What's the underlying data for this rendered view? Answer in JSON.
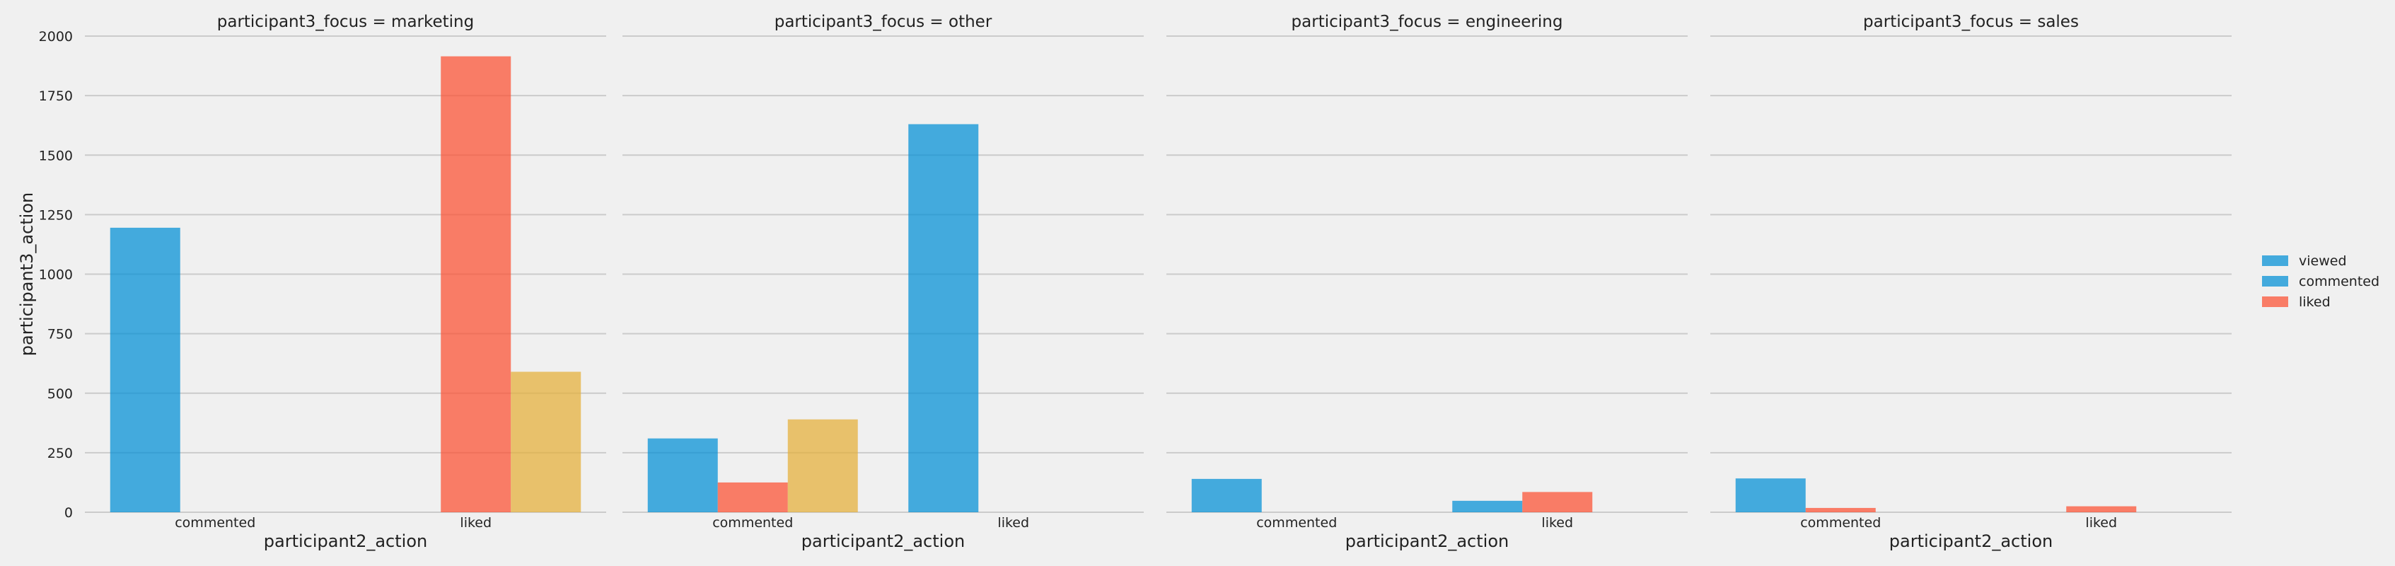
{
  "chart_data": {
    "type": "bar",
    "ylabel": "participant3_action",
    "xlabel": "participant2_action",
    "ylim": [
      0,
      2000
    ],
    "yticks": [
      0,
      250,
      500,
      750,
      1000,
      1250,
      1500,
      1750,
      2000
    ],
    "categories": [
      "commented",
      "liked"
    ],
    "grid": true,
    "legend_placement": "right",
    "legend": [
      {
        "label": "viewed",
        "color": "#008fd5"
      },
      {
        "label": "commented",
        "color": "#008fd5"
      },
      {
        "label": "liked",
        "color": "#fc4f30"
      }
    ],
    "hue_colors": [
      "#008fd5",
      "#fc4f30",
      "#e5ae38"
    ],
    "panels": [
      {
        "title": "participant3_focus = marketing",
        "series": [
          {
            "values": [
              1195,
              0
            ]
          },
          {
            "values": [
              0,
              1915
            ]
          },
          {
            "values": [
              0,
              590
            ]
          }
        ]
      },
      {
        "title": "participant3_focus = other",
        "series": [
          {
            "values": [
              310,
              1630
            ]
          },
          {
            "values": [
              125,
              0
            ]
          },
          {
            "values": [
              390,
              0
            ]
          }
        ]
      },
      {
        "title": "participant3_focus = engineering",
        "series": [
          {
            "values": [
              140,
              48
            ]
          },
          {
            "values": [
              0,
              85
            ]
          },
          {
            "values": [
              0,
              0
            ]
          }
        ]
      },
      {
        "title": "participant3_focus = sales",
        "series": [
          {
            "values": [
              142,
              0
            ]
          },
          {
            "values": [
              18,
              25
            ]
          },
          {
            "values": [
              0,
              0
            ]
          }
        ]
      }
    ]
  }
}
